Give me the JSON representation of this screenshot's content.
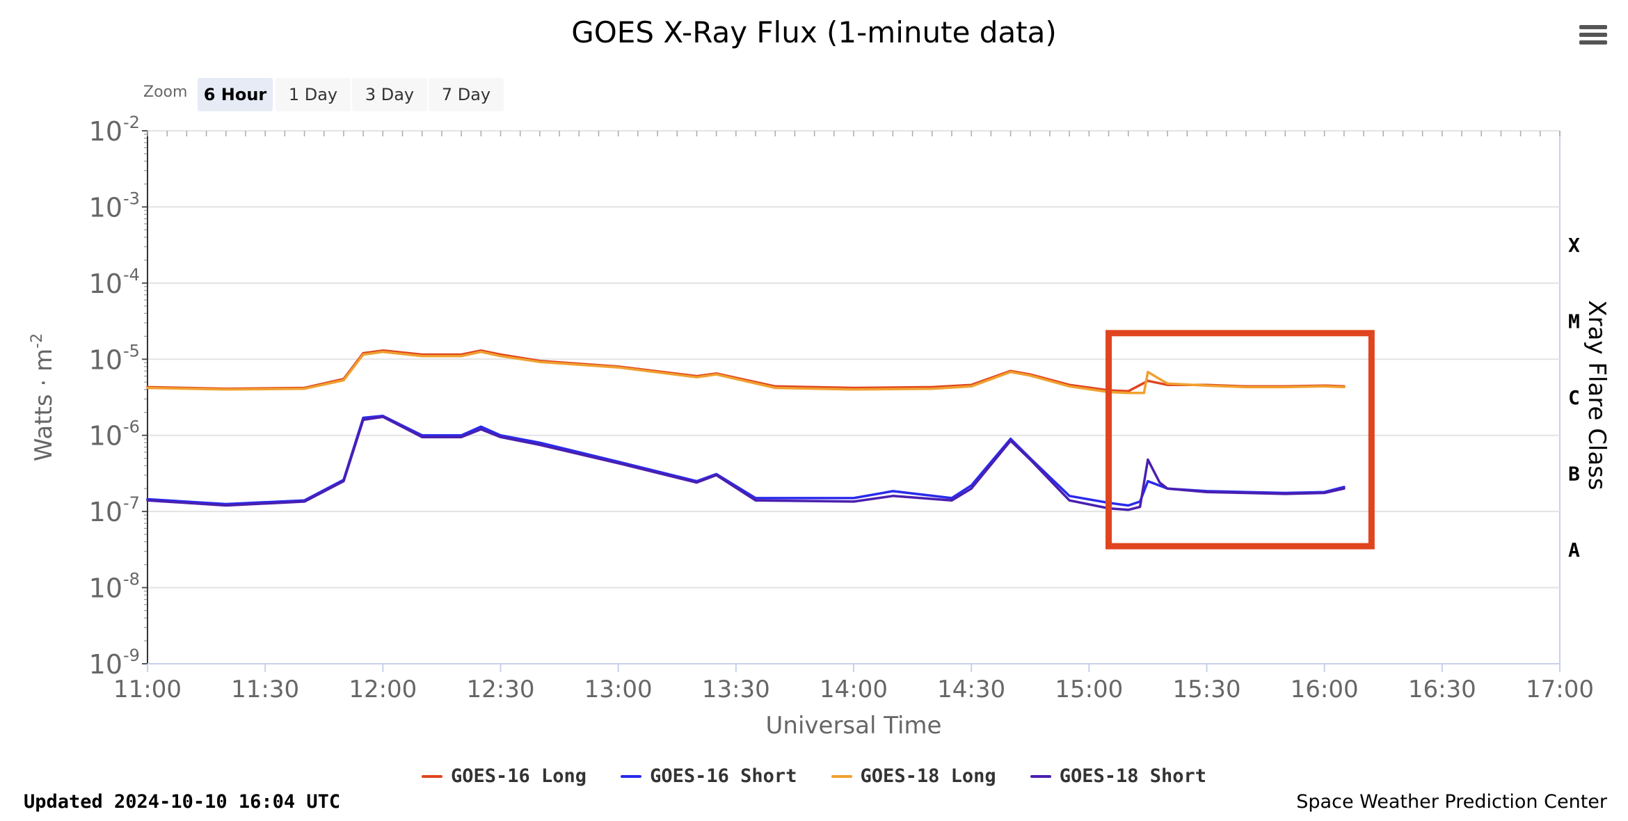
{
  "chart_data": {
    "type": "line",
    "title": "GOES X-Ray Flux (1-minute data)",
    "xlabel": "Universal Time",
    "ylabel": "Watts · m",
    "ylabel_sup": "-2",
    "right_axis_label": "Xray Flare Class",
    "y_scale": "log",
    "ylim": [
      1e-09,
      0.01
    ],
    "y_ticks": [
      {
        "exp": -2,
        "label": "10",
        "sup": "-2"
      },
      {
        "exp": -3,
        "label": "10",
        "sup": "-3"
      },
      {
        "exp": -4,
        "label": "10",
        "sup": "-4"
      },
      {
        "exp": -5,
        "label": "10",
        "sup": "-5"
      },
      {
        "exp": -6,
        "label": "10",
        "sup": "-6"
      },
      {
        "exp": -7,
        "label": "10",
        "sup": "-7"
      },
      {
        "exp": -8,
        "label": "10",
        "sup": "-8"
      },
      {
        "exp": -9,
        "label": "10",
        "sup": "-9"
      }
    ],
    "flare_classes": [
      {
        "label": "X",
        "exp": -4
      },
      {
        "label": "M",
        "exp": -5
      },
      {
        "label": "C",
        "exp": -6
      },
      {
        "label": "B",
        "exp": -7
      },
      {
        "label": "A",
        "exp": -8
      }
    ],
    "x_ticks": [
      "11:00",
      "11:30",
      "12:00",
      "12:30",
      "13:00",
      "13:30",
      "14:00",
      "14:30",
      "15:00",
      "15:30",
      "16:00",
      "16:30",
      "17:00"
    ],
    "xlim": [
      "11:00",
      "17:00"
    ],
    "series": [
      {
        "name": "GOES-16 Long",
        "color": "#e0451f",
        "x": [
          "11:00",
          "11:20",
          "11:40",
          "11:50",
          "11:55",
          "12:00",
          "12:10",
          "12:20",
          "12:25",
          "12:30",
          "12:40",
          "13:00",
          "13:20",
          "13:25",
          "13:40",
          "14:00",
          "14:20",
          "14:30",
          "14:40",
          "14:45",
          "14:55",
          "15:05",
          "15:10",
          "15:15",
          "15:20",
          "15:30",
          "15:40",
          "15:50",
          "16:00",
          "16:05"
        ],
        "y": [
          4.3e-06,
          4.1e-06,
          4.2e-06,
          5.5e-06,
          1.2e-05,
          1.3e-05,
          1.15e-05,
          1.15e-05,
          1.3e-05,
          1.15e-05,
          9.5e-06,
          8e-06,
          6e-06,
          6.5e-06,
          4.4e-06,
          4.2e-06,
          4.3e-06,
          4.6e-06,
          7e-06,
          6.3e-06,
          4.6e-06,
          3.9e-06,
          3.8e-06,
          5.2e-06,
          4.6e-06,
          4.6e-06,
          4.4e-06,
          4.4e-06,
          4.5e-06,
          4.4e-06
        ]
      },
      {
        "name": "GOES-16 Short",
        "color": "#2a2aeb",
        "x": [
          "11:00",
          "11:20",
          "11:40",
          "11:50",
          "11:55",
          "12:00",
          "12:10",
          "12:20",
          "12:25",
          "12:30",
          "12:40",
          "13:00",
          "13:20",
          "13:25",
          "13:35",
          "14:00",
          "14:10",
          "14:25",
          "14:30",
          "14:40",
          "14:45",
          "14:55",
          "15:05",
          "15:10",
          "15:13",
          "15:15",
          "15:20",
          "15:30",
          "15:40",
          "15:50",
          "16:00",
          "16:05"
        ],
        "y": [
          1.45e-07,
          1.25e-07,
          1.4e-07,
          2.6e-07,
          1.7e-06,
          1.8e-06,
          1e-06,
          1e-06,
          1.3e-06,
          1e-06,
          8e-07,
          4.5e-07,
          2.5e-07,
          3.1e-07,
          1.5e-07,
          1.5e-07,
          1.85e-07,
          1.5e-07,
          2.2e-07,
          9e-07,
          5e-07,
          1.6e-07,
          1.3e-07,
          1.2e-07,
          1.35e-07,
          2.5e-07,
          2e-07,
          1.85e-07,
          1.8e-07,
          1.75e-07,
          1.8e-07,
          2.1e-07
        ]
      },
      {
        "name": "GOES-18 Long",
        "color": "#f0a030",
        "x": [
          "11:00",
          "11:20",
          "11:40",
          "11:50",
          "11:55",
          "12:00",
          "12:10",
          "12:20",
          "12:25",
          "12:30",
          "12:40",
          "13:00",
          "13:20",
          "13:25",
          "13:40",
          "14:00",
          "14:20",
          "14:30",
          "14:40",
          "14:45",
          "14:55",
          "15:05",
          "15:10",
          "15:14",
          "15:15",
          "15:18",
          "15:20",
          "15:30",
          "15:40",
          "15:50",
          "16:00",
          "16:05"
        ],
        "y": [
          4.2e-06,
          4e-06,
          4.1e-06,
          5.3e-06,
          1.15e-05,
          1.25e-05,
          1.1e-05,
          1.1e-05,
          1.25e-05,
          1.1e-05,
          9.2e-06,
          7.8e-06,
          5.8e-06,
          6.3e-06,
          4.2e-06,
          4e-06,
          4.1e-06,
          4.4e-06,
          6.8e-06,
          6.1e-06,
          4.4e-06,
          3.7e-06,
          3.6e-06,
          3.6e-06,
          6.8e-06,
          5.5e-06,
          4.8e-06,
          4.5e-06,
          4.3e-06,
          4.3e-06,
          4.4e-06,
          4.3e-06
        ]
      },
      {
        "name": "GOES-18 Short",
        "color": "#4a1fb0",
        "x": [
          "11:00",
          "11:20",
          "11:40",
          "11:50",
          "11:55",
          "12:00",
          "12:10",
          "12:20",
          "12:25",
          "12:30",
          "12:40",
          "13:00",
          "13:20",
          "13:25",
          "13:35",
          "14:00",
          "14:10",
          "14:25",
          "14:30",
          "14:40",
          "14:45",
          "14:55",
          "15:05",
          "15:10",
          "15:13",
          "15:15",
          "15:18",
          "15:20",
          "15:30",
          "15:40",
          "15:50",
          "16:00",
          "16:05"
        ],
        "y": [
          1.4e-07,
          1.2e-07,
          1.35e-07,
          2.5e-07,
          1.6e-06,
          1.75e-06,
          9.5e-07,
          9.5e-07,
          1.2e-06,
          9.5e-07,
          7.5e-07,
          4.3e-07,
          2.4e-07,
          3e-07,
          1.4e-07,
          1.35e-07,
          1.6e-07,
          1.4e-07,
          2e-07,
          8.5e-07,
          4.8e-07,
          1.4e-07,
          1.1e-07,
          1.05e-07,
          1.15e-07,
          4.8e-07,
          2.4e-07,
          2e-07,
          1.8e-07,
          1.75e-07,
          1.7e-07,
          1.75e-07,
          2e-07
        ]
      }
    ],
    "annotation_box": {
      "x_start": "15:05",
      "x_end": "16:12",
      "y_low": 3.5e-08,
      "y_high": 2.2e-05,
      "color": "#e0451f"
    },
    "grid": true,
    "legend_position": "bottom"
  },
  "zoom": {
    "label": "Zoom",
    "buttons": [
      "6 Hour",
      "1 Day",
      "3 Day",
      "7 Day"
    ],
    "active": "6 Hour"
  },
  "footer": {
    "updated": "Updated 2024-10-10 16:04 UTC",
    "source": "Space Weather Prediction Center"
  }
}
